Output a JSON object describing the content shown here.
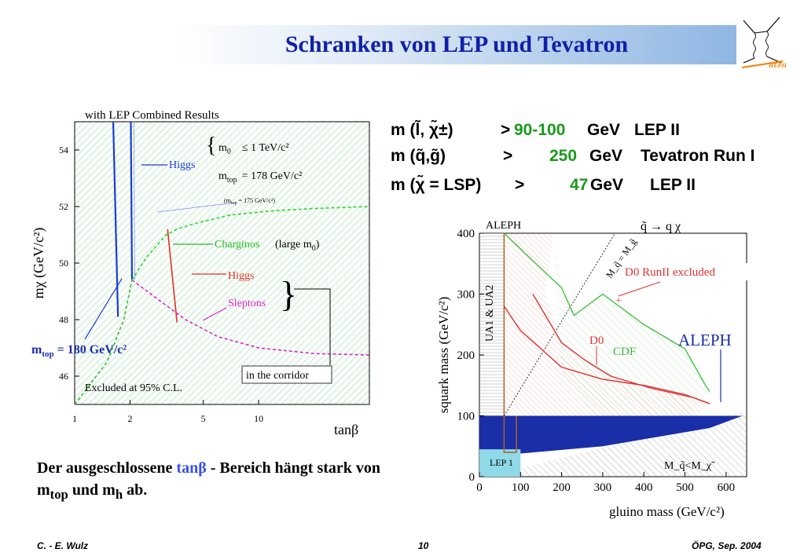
{
  "title": "Schranken  von LEP und Tevatron",
  "logo": {
    "icon": "feynman-diagram-icon",
    "text": "HEPHY"
  },
  "results": [
    {
      "lhs": "m (l̃, χ̃±)",
      "op": ">",
      "value": "90-100",
      "unit": "GeV",
      "exp": "LEP II"
    },
    {
      "lhs": "m (q̃,g̃)",
      "op": ">",
      "value": "250",
      "unit": "GeV",
      "exp": "Tevatron Run I"
    },
    {
      "lhs": "m (χ̃ = LSP)",
      "op": ">",
      "value": "47",
      "unit": "GeV",
      "exp": "LEP II"
    }
  ],
  "caption": {
    "part1": "Der ausgeschlossene ",
    "highlight": "tanβ",
    "part2": " - Bereich hängt stark von m",
    "sub1": "top",
    "part3": " und m",
    "sub2": "h",
    "part4": " ab."
  },
  "footer": {
    "left": "C. - E. Wulz",
    "center": "10",
    "right": "ÖPG, Sep. 2004"
  },
  "chart_data": [
    {
      "type": "line",
      "title": "with LEP Combined Results",
      "xlabel": "tanβ",
      "ylabel": "mχ (GeV/c²)",
      "xscale": "log",
      "xlim": [
        1,
        40
      ],
      "ylim": [
        45,
        55
      ],
      "xticks": [
        1,
        2,
        5,
        10
      ],
      "yticks": [
        46,
        48,
        50,
        52,
        54
      ],
      "series": [
        {
          "name": "Higgs",
          "color": "#1a3adc",
          "x": [
            1.62,
            1.72
          ],
          "y": [
            55,
            48.1
          ]
        },
        {
          "name": "Higgs",
          "color": "#1a3adc",
          "x": [
            2.02,
            2.05
          ],
          "y": [
            55,
            49.4
          ]
        },
        {
          "name": "Charginos",
          "color": "#22d822",
          "x": [
            2.05,
            2.45,
            3.15,
            3.6,
            4.5,
            7,
            12,
            20,
            40
          ],
          "y": [
            49.4,
            50.2,
            51.0,
            51.2,
            51.4,
            51.7,
            51.85,
            51.93,
            52.0
          ]
        },
        {
          "name": "Higgs",
          "color": "#e03020",
          "x": [
            3.2,
            3.4,
            3.6
          ],
          "y": [
            51.2,
            49.5,
            47.9
          ]
        },
        {
          "name": "Sleptons",
          "color": "#e020d0",
          "x": [
            2.05,
            3,
            4,
            6,
            10,
            20,
            40
          ],
          "y": [
            49.4,
            48.6,
            48.0,
            47.4,
            47.0,
            46.8,
            46.75
          ]
        },
        {
          "name": "",
          "color": "#30c030",
          "x": [
            1.0,
            1.5,
            1.85,
            2.05
          ],
          "y": [
            45,
            46.5,
            48.0,
            49.4
          ]
        }
      ],
      "legend": {
        "m0_label": "m",
        "m0_sub": "0",
        "m0_value": "≤ 1 TeV/c²",
        "mtop_label": "m",
        "mtop_sub": "top",
        "mtop_value": "= 178 GeV/c²",
        "mtop175": "(m",
        "mtop175_sub": "top",
        "mtop175_value": " = 175 GeV/c²)"
      },
      "annotations": {
        "higgs1": "Higgs",
        "charginos": "Charginos",
        "large_m0": "(large m",
        "large_m0_sub": "0",
        "large_m0_end": ")",
        "higgs2": "Higgs",
        "sleptons": "Sleptons",
        "corridor": "in the corridor",
        "excluded": "Excluded at 95% C.L.",
        "mtop180_label": "m",
        "mtop180_sub": "top",
        "mtop180_value": " = 180 GeV/c²"
      }
    },
    {
      "type": "area",
      "xlabel": "gluino mass (GeV/c²)",
      "ylabel": "squark mass (GeV/c²)",
      "xlim": [
        0,
        650
      ],
      "ylim": [
        0,
        400
      ],
      "xticks": [
        0,
        100,
        200,
        300,
        400,
        500,
        600
      ],
      "yticks": [
        0,
        100,
        200,
        300,
        400
      ],
      "title": "q̃ → q χ",
      "series": [
        {
          "name": "ALEPH",
          "color": "#1a2ea8",
          "x": [
            0,
            50,
            100,
            200,
            300,
            400,
            500,
            550,
            600,
            640
          ],
          "y": [
            100,
            100,
            100,
            100,
            100,
            100,
            100,
            100,
            100,
            100
          ]
        },
        {
          "name": "D0 RunII excluded",
          "color": "#e03030",
          "x": [
            60,
            100,
            150,
            200,
            300,
            400,
            500,
            560
          ],
          "y": [
            280,
            240,
            210,
            180,
            160,
            150,
            135,
            120
          ]
        },
        {
          "name": "CDF",
          "color": "#40c040",
          "x": [
            60,
            200,
            230,
            270,
            300,
            400,
            500,
            550,
            560
          ],
          "y": [
            400,
            310,
            265,
            285,
            300,
            250,
            210,
            150,
            140
          ]
        },
        {
          "name": "D0",
          "color": "#e03030",
          "x": [
            130,
            200,
            260,
            320,
            420,
            520,
            560
          ],
          "y": [
            300,
            220,
            190,
            165,
            145,
            130,
            120
          ]
        }
      ],
      "annotations": {
        "aleph_top": "ALEPH",
        "ua": "UA1 & UA2",
        "diag": "M_q̃ = M_g̃",
        "d0runii": "D0 RunII excluded",
        "d0": "D0",
        "cdf": "CDF",
        "aleph": "ALEPH",
        "lep1": "LEP 1",
        "msq": "M_q̃<M_χ̃"
      }
    }
  ]
}
